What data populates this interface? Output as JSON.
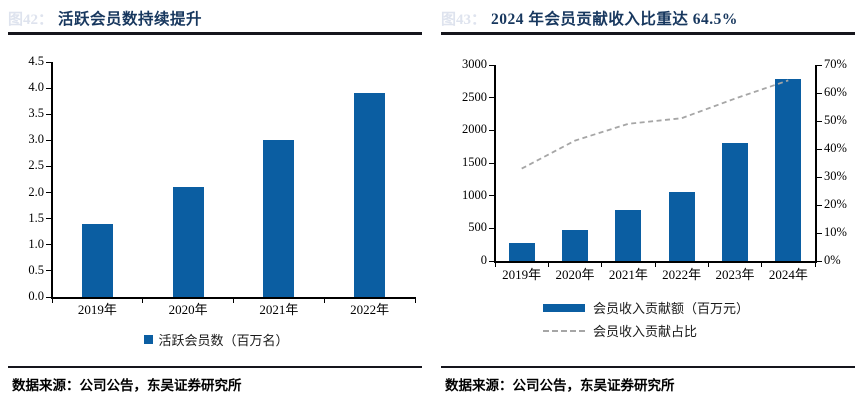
{
  "colors": {
    "bar_blue": "#0B5EA2",
    "title_navy": "#17375E",
    "dash_gray": "#A6A6A6",
    "axis_black": "#000000",
    "fig_label_faint": "#dee3ee"
  },
  "left_panel": {
    "fig_label": "图42：",
    "title": "活跃会员数持续提升",
    "source": "数据来源：公司公告，东吴证券研究所"
  },
  "right_panel": {
    "fig_label": "图43：",
    "title": "2024 年会员贡献收入比重达 64.5%",
    "source": "数据来源：公司公告，东吴证券研究所"
  },
  "chart_data": [
    {
      "type": "bar",
      "title": "活跃会员数持续提升",
      "categories": [
        "2019年",
        "2020年",
        "2021年",
        "2022年"
      ],
      "series": [
        {
          "name": "活跃会员数（百万名）",
          "type": "bar",
          "axis": "left",
          "values": [
            1.4,
            2.1,
            3.0,
            3.9
          ]
        }
      ],
      "ylim_left": [
        0,
        4.5
      ],
      "ytick_step_left": 0.5,
      "ytick_decimals_left": 1,
      "grid": false,
      "legend_position": "bottom"
    },
    {
      "type": "bar+line",
      "title": "2024 年会员贡献收入比重达 64.5%",
      "categories": [
        "2019年",
        "2020年",
        "2021年",
        "2022年",
        "2023年",
        "2024年"
      ],
      "series": [
        {
          "name": "会员收入贡献额（百万元）",
          "type": "bar",
          "axis": "left",
          "values": [
            280,
            480,
            780,
            1050,
            1800,
            2780
          ]
        },
        {
          "name": "会员收入贡献占比",
          "type": "line",
          "axis": "right",
          "values": [
            33,
            43,
            49,
            51,
            58,
            64.5
          ],
          "unit": "%"
        }
      ],
      "ylim_left": [
        0,
        3000
      ],
      "ytick_step_left": 500,
      "ytick_decimals_left": 0,
      "ylim_right": [
        0,
        70
      ],
      "ytick_step_right": 10,
      "ytick_suffix_right": "%",
      "grid": false,
      "legend_position": "bottom"
    }
  ]
}
